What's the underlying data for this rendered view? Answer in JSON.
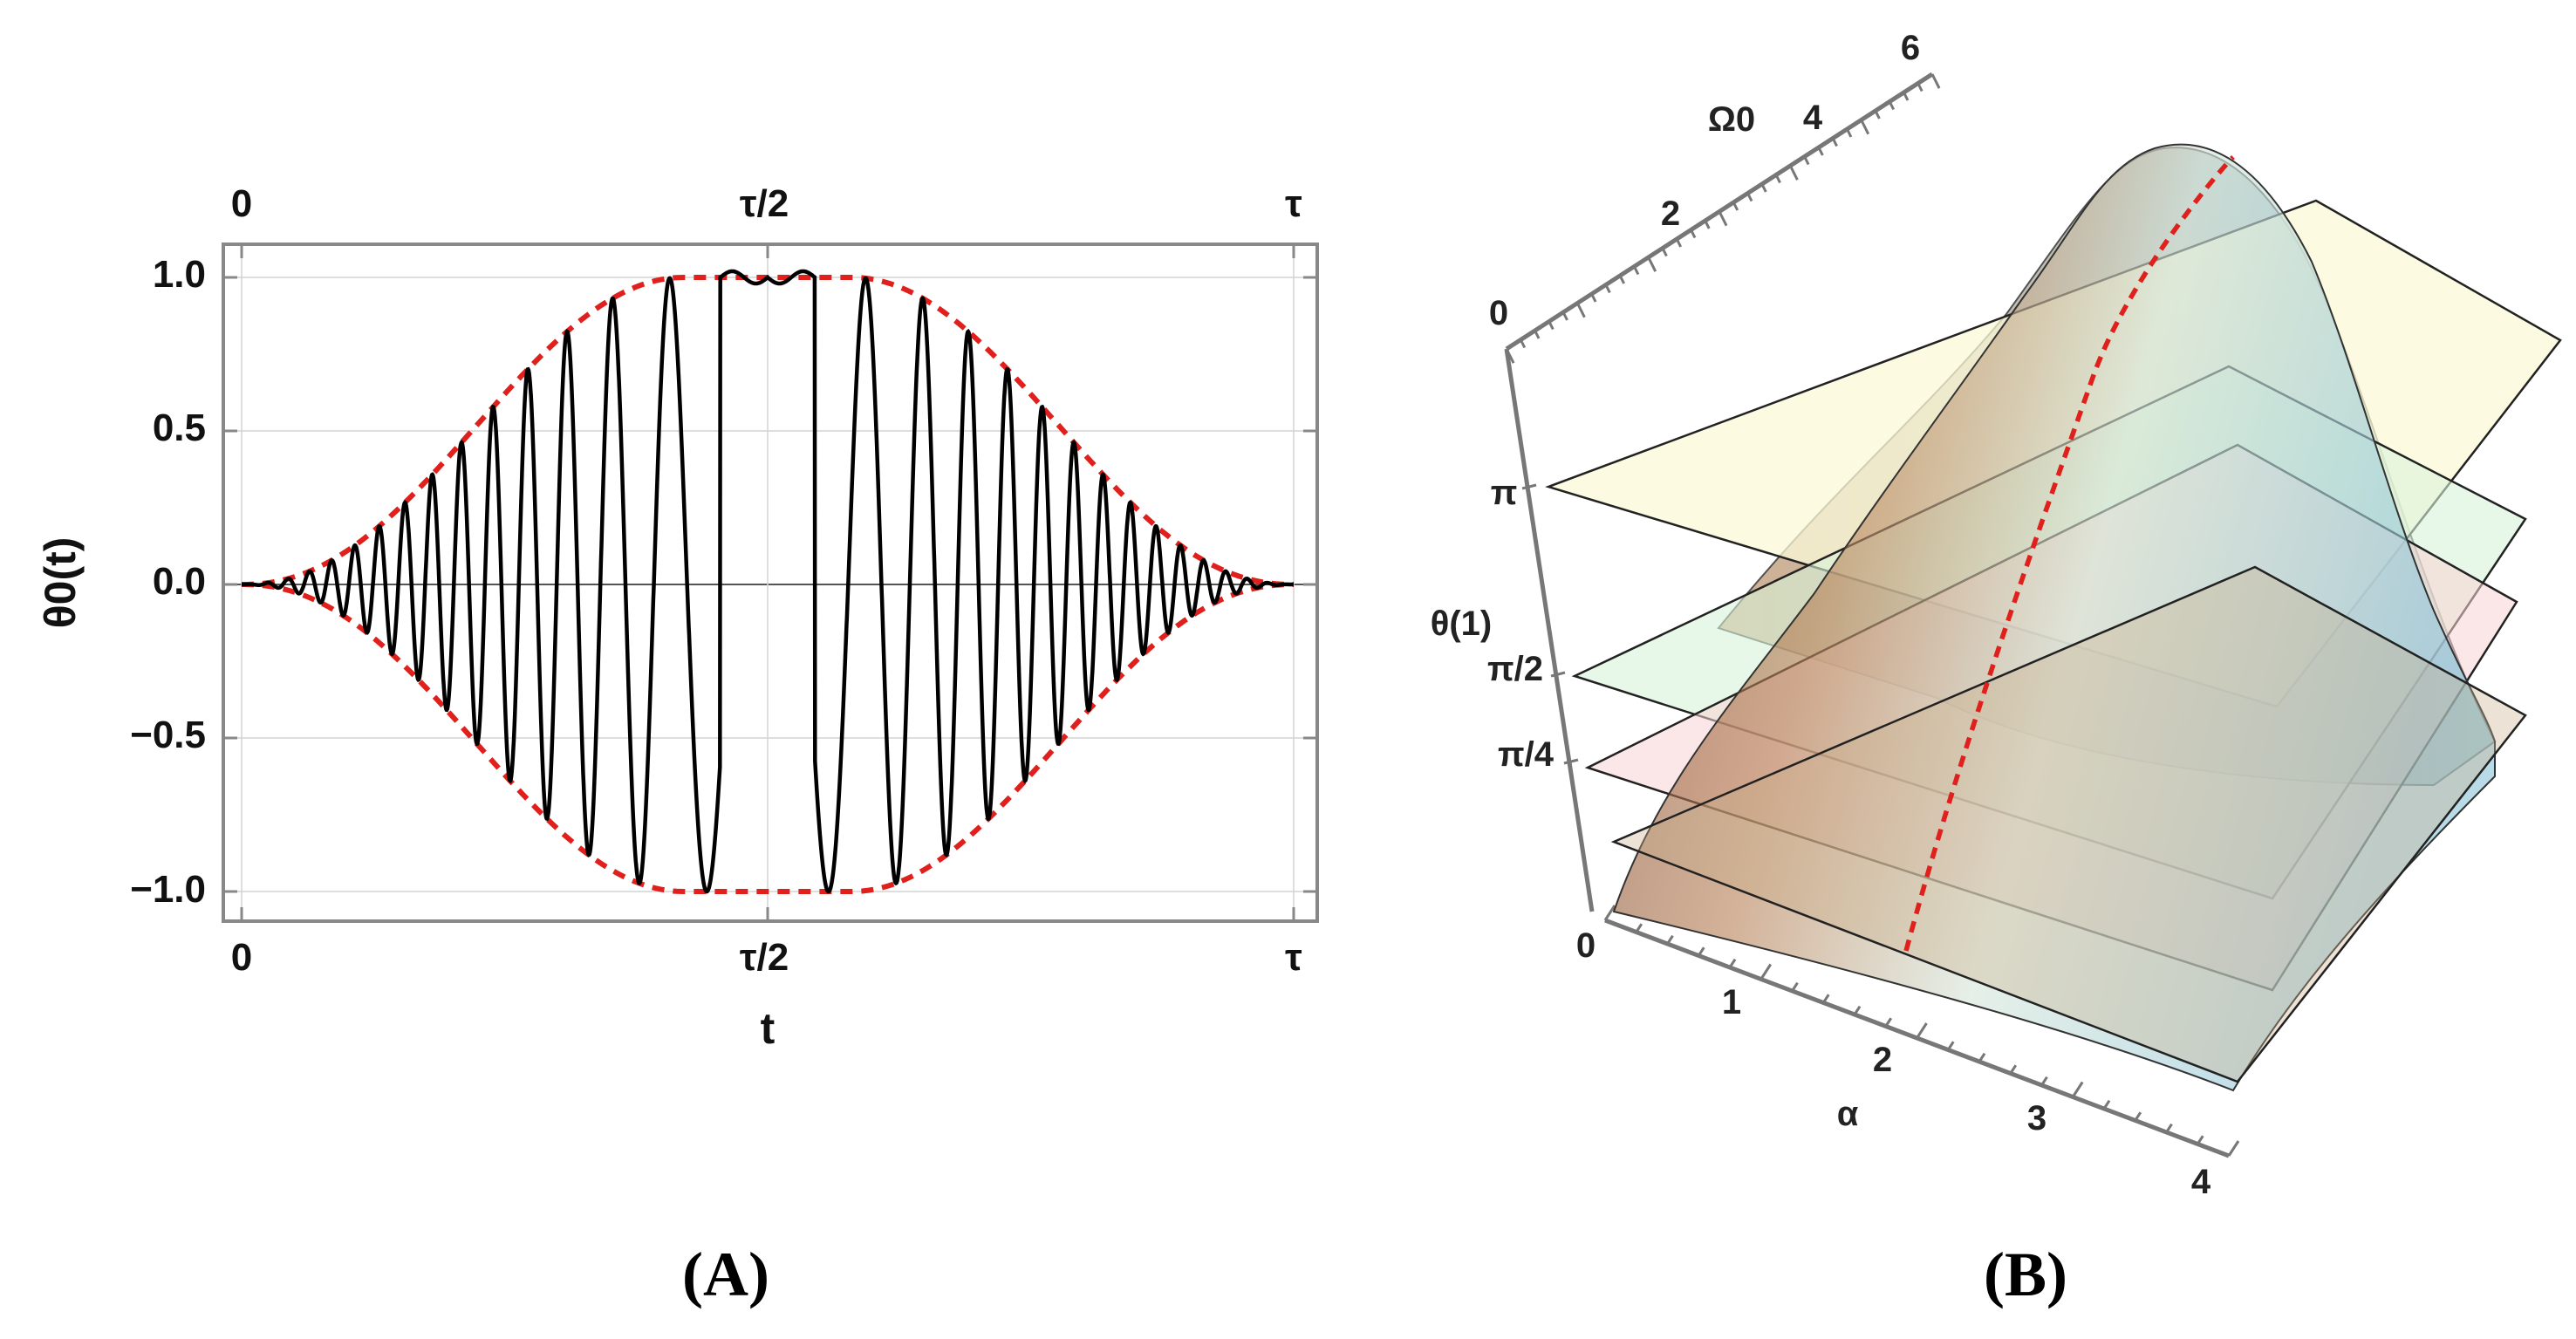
{
  "chart_data": [
    {
      "panel": "(A)",
      "type": "line",
      "xlabel": "t",
      "ylabel": "θ0(t)",
      "x_ticks_bottom": [
        "0",
        "τ/2",
        "τ"
      ],
      "x_ticks_top": [
        "0",
        "τ/2",
        "τ"
      ],
      "y_ticks": [
        "1.0",
        "0.5",
        "0.0",
        "−0.5",
        "−1.0"
      ],
      "y_tick_values": [
        1.0,
        0.5,
        0.0,
        -0.5,
        -1.0
      ],
      "xlim": [
        0,
        1
      ],
      "ylim": [
        -1.1,
        1.1
      ],
      "grid": true,
      "series": [
        {
          "style": "solid",
          "color": "#000000",
          "x": [
            0.0,
            0.05,
            0.1,
            0.15,
            0.2,
            0.25,
            0.3,
            0.35,
            0.4,
            0.45,
            0.5,
            0.55,
            0.6,
            0.65,
            0.7,
            0.75,
            0.8,
            0.85,
            0.9,
            0.95,
            1.0
          ],
          "y": [
            0.0,
            0.0,
            0.05,
            0.15,
            0.5,
            0.8,
            -0.9,
            0.95,
            -1.0,
            1.0,
            1.0,
            1.0,
            -1.0,
            1.0,
            -0.97,
            0.95,
            -0.9,
            0.8,
            -0.5,
            0.1,
            0.0
          ]
        },
        {
          "style": "dashed",
          "color": "#e0201c",
          "x": [
            0.0,
            0.05,
            0.1,
            0.15,
            0.2,
            0.25,
            0.3,
            0.35,
            0.4,
            0.5,
            0.6,
            0.65,
            0.7,
            0.75,
            0.8,
            0.85,
            0.9,
            0.95,
            1.0
          ],
          "y": [
            0.0,
            0.05,
            0.2,
            0.45,
            0.7,
            0.85,
            0.95,
            0.99,
            1.0,
            1.0,
            1.0,
            0.99,
            0.95,
            0.85,
            0.7,
            0.45,
            0.2,
            0.05,
            0.0
          ]
        },
        {
          "style": "dashed",
          "color": "#e0201c",
          "x": [
            0.0,
            0.05,
            0.1,
            0.15,
            0.2,
            0.25,
            0.3,
            0.35,
            0.4,
            0.5,
            0.6,
            0.65,
            0.7,
            0.75,
            0.8,
            0.85,
            0.9,
            0.95,
            1.0
          ],
          "y": [
            0.0,
            -0.05,
            -0.2,
            -0.45,
            -0.7,
            -0.85,
            -0.95,
            -0.99,
            -1.0,
            -1.0,
            -1.0,
            -0.99,
            -0.95,
            -0.85,
            -0.7,
            -0.45,
            -0.2,
            -0.05,
            0.0
          ]
        }
      ],
      "colors": {
        "curve": "#000000",
        "envelope": "#e0201c",
        "frame": "#888888",
        "grid": "#d4d4d4"
      }
    },
    {
      "panel": "(B)",
      "type": "surface3d",
      "axis_labels": {
        "x": "α",
        "y": "Ω0",
        "z": "θ(1)"
      },
      "x_ticks": [
        "0",
        "1",
        "2",
        "3",
        "4"
      ],
      "y_ticks": [
        "0",
        "2",
        "4",
        "6"
      ],
      "z_ticks": [
        "π",
        "π/2",
        "π/4"
      ],
      "xlim": [
        0,
        4
      ],
      "ylim": [
        0,
        6
      ],
      "planes": [
        {
          "level": "π",
          "color": "#fbfad8"
        },
        {
          "level": "π/2",
          "color": "#d8f3d8"
        },
        {
          "level": "π/4",
          "color": "#f7d4d4"
        }
      ],
      "ridge_line": {
        "style": "dashed",
        "color": "#e0201c"
      },
      "colors": {
        "surface_warm": "#7a3a1c",
        "surface_cool": "#a8d8e8",
        "box": "#777777"
      }
    }
  ],
  "captions": {
    "panel_a": "(A)",
    "panel_b": "(B)"
  }
}
